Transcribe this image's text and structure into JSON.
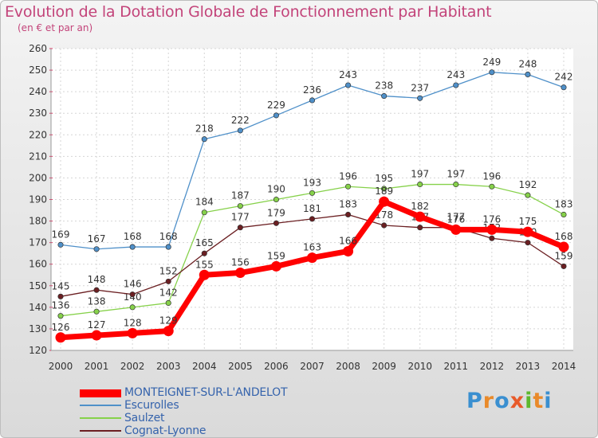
{
  "header": {
    "title": "Evolution de la Dotation Globale de Fonctionnement par Habitant",
    "subtitle": "(en € et par an)"
  },
  "logo": {
    "text": "Proxiti",
    "letter_colors": [
      "#3a8fd0",
      "#e98a2a",
      "#3a8fd0",
      "#e85a2a",
      "#5db82e",
      "#e98a2a",
      "#3a8fd0"
    ]
  },
  "chart_data": {
    "type": "line",
    "x": [
      2000,
      2001,
      2002,
      2003,
      2004,
      2005,
      2006,
      2007,
      2008,
      2009,
      2010,
      2011,
      2012,
      2013,
      2014
    ],
    "ylim": [
      120,
      260
    ],
    "yticks": [
      120,
      130,
      140,
      150,
      160,
      170,
      180,
      190,
      200,
      210,
      220,
      230,
      240,
      250,
      260
    ],
    "grid": true,
    "legend_position": "bottom",
    "series": [
      {
        "name": "Escurolles",
        "color": "#4f90c9",
        "values": [
          169,
          167,
          168,
          168,
          218,
          222,
          229,
          236,
          243,
          238,
          237,
          243,
          249,
          248,
          242
        ]
      },
      {
        "name": "Saulzet",
        "color": "#86d14a",
        "values": [
          136,
          138,
          140,
          142,
          184,
          187,
          190,
          193,
          196,
          195,
          197,
          197,
          196,
          192,
          183
        ]
      },
      {
        "name": "Cognat-Lyonne",
        "color": "#6b1f22",
        "values": [
          145,
          148,
          146,
          152,
          165,
          177,
          179,
          181,
          183,
          178,
          177,
          177,
          172,
          170,
          159
        ]
      },
      {
        "name": "MONTEIGNET-SUR-L'ANDELOT",
        "color": "#ff0000",
        "values": [
          126,
          127,
          128,
          129,
          155,
          156,
          159,
          163,
          166,
          189,
          182,
          176,
          176,
          175,
          168
        ]
      }
    ]
  }
}
